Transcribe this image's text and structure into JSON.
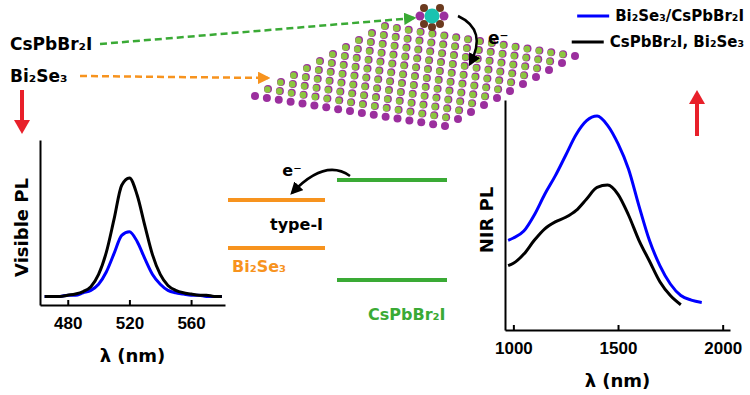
{
  "chart_data": [
    {
      "type": "line",
      "xlabel": "λ (nm)",
      "ylabel": "Visible PL",
      "x": [
        465,
        470,
        475,
        480,
        485,
        490,
        495,
        500,
        505,
        510,
        515,
        520,
        525,
        530,
        535,
        540,
        545,
        550,
        555,
        560,
        565,
        570,
        575,
        580
      ],
      "series": [
        {
          "color": "#0000ff",
          "values": [
            0.02,
            0.02,
            0.02,
            0.03,
            0.03,
            0.05,
            0.07,
            0.12,
            0.22,
            0.37,
            0.52,
            0.55,
            0.47,
            0.33,
            0.2,
            0.12,
            0.07,
            0.05,
            0.04,
            0.03,
            0.03,
            0.02,
            0.02,
            0.02
          ]
        },
        {
          "color": "#000000",
          "values": [
            0.02,
            0.02,
            0.02,
            0.03,
            0.04,
            0.06,
            0.1,
            0.2,
            0.38,
            0.65,
            0.93,
            0.99,
            0.85,
            0.6,
            0.36,
            0.2,
            0.11,
            0.07,
            0.05,
            0.04,
            0.03,
            0.03,
            0.02,
            0.02
          ]
        }
      ],
      "xlim": [
        462,
        582
      ],
      "xticks": [
        480,
        520,
        560
      ],
      "ylim": [
        -0.05,
        1.3
      ],
      "yticks": [],
      "tick_labels": "x"
    },
    {
      "type": "line",
      "xlabel": "λ (nm)",
      "ylabel": "NIR PL",
      "x": [
        975,
        1000,
        1050,
        1100,
        1150,
        1200,
        1250,
        1300,
        1350,
        1400,
        1450,
        1500,
        1550,
        1600,
        1650,
        1700,
        1750,
        1800,
        1850,
        1900,
        1950,
        2000
      ],
      "series": [
        {
          "name": "Bi₂Se₃/CsPbBr₂I",
          "color": "#0000ff",
          "values": [
            0.39,
            0.4,
            0.43,
            0.5,
            0.59,
            0.67,
            0.76,
            0.85,
            0.91,
            0.93,
            0.89,
            0.81,
            0.7,
            0.54,
            0.39,
            0.28,
            0.2,
            0.15,
            0.13,
            0.12,
            null,
            null
          ]
        },
        {
          "name": "CsPbBr₂I, Bi₂Se₃",
          "color": "#000000",
          "values": [
            0.28,
            0.29,
            0.33,
            0.39,
            0.44,
            0.47,
            0.49,
            0.52,
            0.57,
            0.62,
            0.63,
            0.59,
            0.5,
            0.39,
            0.3,
            0.21,
            0.15,
            0.11,
            null,
            null,
            null,
            null
          ]
        }
      ],
      "xlim": [
        960,
        2035
      ],
      "xticks": [
        1000,
        1500,
        2000
      ],
      "ylim": [
        0,
        1
      ],
      "yticks": [],
      "tick_labels": "x",
      "legend": "upper right"
    }
  ],
  "diagram": {
    "labels": {
      "perovskite": "CsPbBr₂I",
      "substrate": "Bi₂Se₃"
    },
    "electron": "e⁻",
    "band_diagram": {
      "alignment": "type-I",
      "left": "Bi₂Se₃",
      "right": "CsPbBr₂I",
      "electron": "e⁻"
    }
  }
}
